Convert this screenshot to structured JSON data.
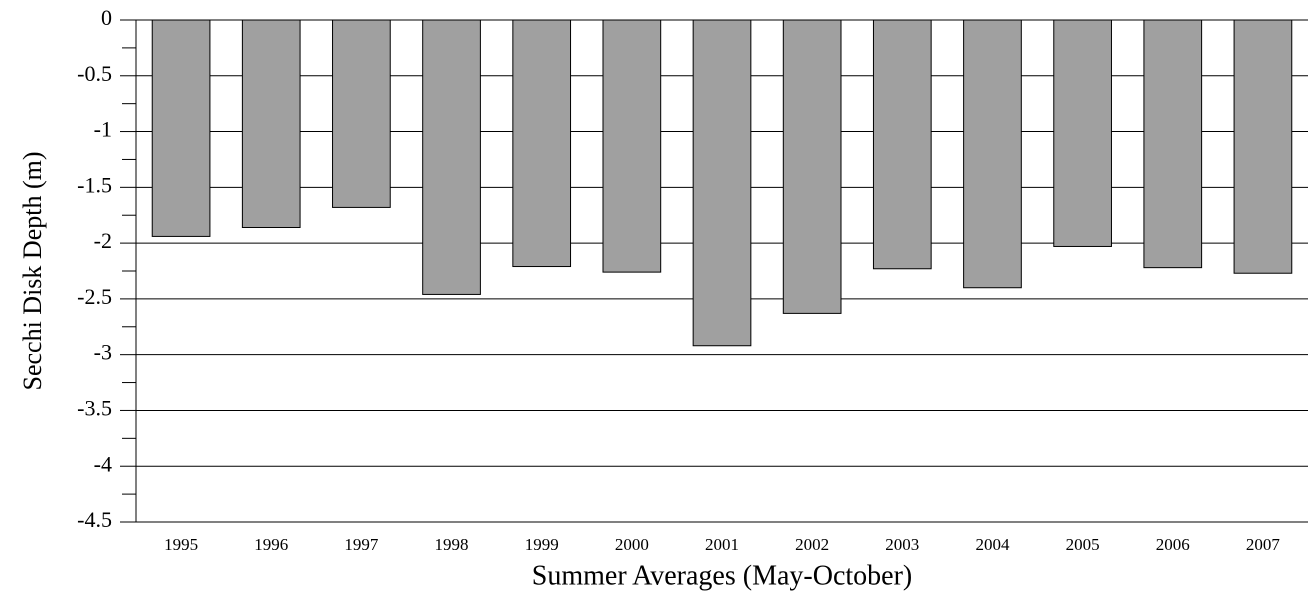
{
  "chart_data": {
    "type": "bar",
    "x_label": "Summer Averages (May-October)",
    "y_label": "Secchi Disk Depth (m)",
    "categories": [
      "1995",
      "1996",
      "1997",
      "1998",
      "1999",
      "2000",
      "2001",
      "2002",
      "2003",
      "2004",
      "2005",
      "2006",
      "2007"
    ],
    "values": [
      -1.94,
      -1.86,
      -1.68,
      -2.46,
      -2.21,
      -2.26,
      -2.92,
      -2.63,
      -2.23,
      -2.4,
      -2.03,
      -2.22,
      -2.27
    ],
    "color": "#a0a0a0",
    "ylim": [
      -4.5,
      0
    ],
    "yticks": [
      0,
      -0.5,
      -1,
      -1.5,
      -2,
      -2.5,
      -3,
      -3.5,
      -4,
      -4.5
    ],
    "yminorticks": [
      -0.25,
      -0.75,
      -1.25,
      -1.75,
      -2.25,
      -2.75,
      -3.25,
      -3.75,
      -4.25
    ],
    "grid": true
  }
}
